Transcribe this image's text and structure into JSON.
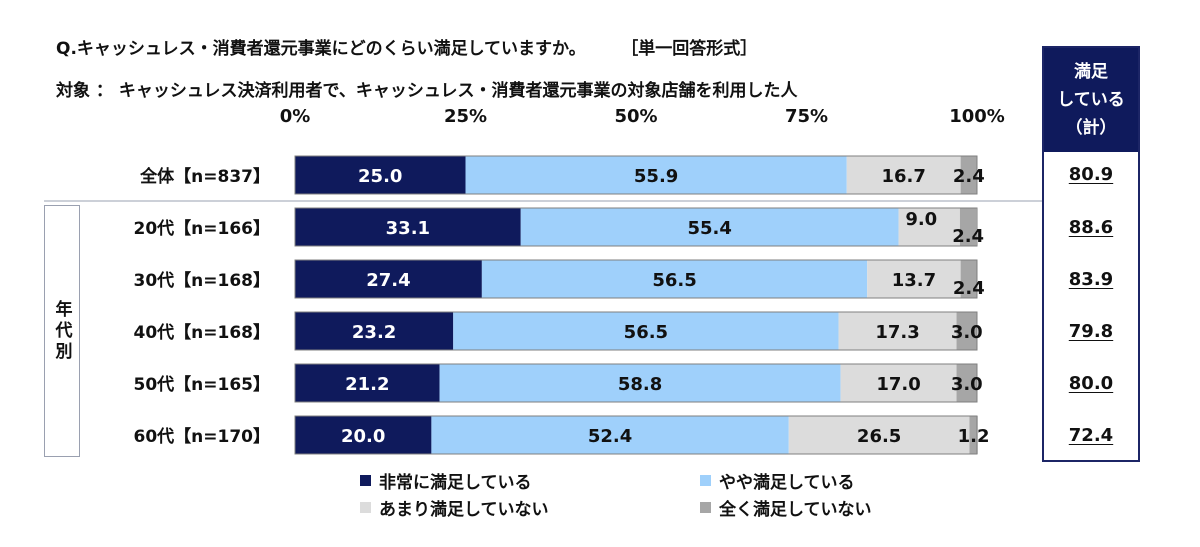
{
  "question": "Q.キャッシュレス・消費者還元事業にどのくらい満足していますか。",
  "answer_format": "［単一回答形式］",
  "target": "対象 ： キャッシュレス決済利用者で、キャッシュレス・消費者還元事業の対象店舗を利用した人",
  "age_group_label": "年代別",
  "summary_header": [
    "満足",
    "している",
    "（計）"
  ],
  "summary_values": [
    "80.9",
    "88.6",
    "83.9",
    "79.8",
    "80.0",
    "72.4"
  ],
  "colors": {
    "very_satisfied": "#0f1a5c",
    "somewhat_satisfied": "#9fd0fb",
    "not_very_satisfied": "#dcdcdc",
    "not_at_all_satisfied": "#a6a6a6"
  },
  "chart_data": {
    "type": "bar",
    "orientation": "horizontal",
    "stacked": true,
    "percent_axis_ticks": [
      "0%",
      "25%",
      "50%",
      "75%",
      "100%"
    ],
    "xlim": [
      0,
      100
    ],
    "categories": [
      "全体【n=837】",
      "20代【n=166】",
      "30代【n=168】",
      "40代【n=168】",
      "50代【n=165】",
      "60代【n=170】"
    ],
    "series": [
      {
        "name": "非常に満足している",
        "values": [
          25.0,
          33.1,
          27.4,
          23.2,
          21.2,
          20.0
        ],
        "labels": [
          "25.0",
          "33.1",
          "27.4",
          "23.2",
          "21.2",
          "20.0"
        ]
      },
      {
        "name": "やや満足している",
        "values": [
          55.9,
          55.4,
          56.5,
          56.5,
          58.8,
          52.4
        ],
        "labels": [
          "55.9",
          "55.4",
          "56.5",
          "56.5",
          "58.8",
          "52.4"
        ]
      },
      {
        "name": "あまり満足していない",
        "values": [
          16.7,
          9.0,
          13.7,
          17.3,
          17.0,
          26.5
        ],
        "labels": [
          "16.7",
          "9.0",
          "13.7",
          "17.3",
          "17.0",
          "26.5"
        ]
      },
      {
        "name": "全く満足していない",
        "values": [
          2.4,
          2.4,
          2.4,
          3.0,
          3.0,
          1.2
        ],
        "labels": [
          "2.4",
          "2.4",
          "2.4",
          "3.0",
          "3.0",
          "1.2"
        ]
      }
    ],
    "legend_position": "bottom"
  }
}
